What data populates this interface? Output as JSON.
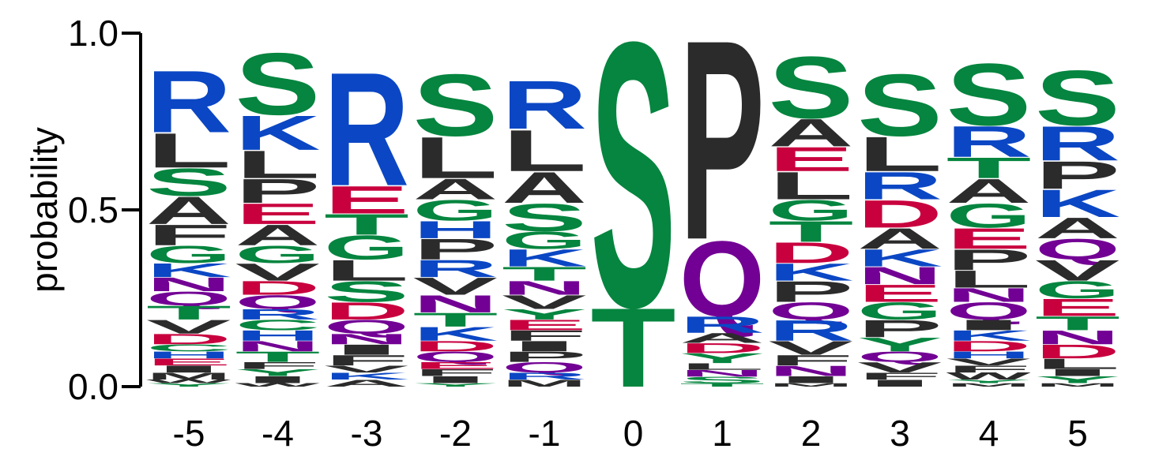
{
  "chart_data": {
    "type": "sequence-logo",
    "ylabel": "probability",
    "ylim": [
      0,
      1
    ],
    "yticks": [
      "0.0",
      "0.5",
      "1.0"
    ],
    "colors": {
      "R": "#0b47c4",
      "K": "#0b47c4",
      "H": "#0b47c4",
      "S": "#05853f",
      "G": "#05853f",
      "T": "#05853f",
      "Y": "#05853f",
      "C": "#05853f",
      "L": "#2b2b2b",
      "A": "#2b2b2b",
      "P": "#2b2b2b",
      "V": "#2b2b2b",
      "I": "#2b2b2b",
      "F": "#2b2b2b",
      "M": "#2b2b2b",
      "W": "#2b2b2b",
      "E": "#c8003e",
      "D": "#c8003e",
      "N": "#720094",
      "Q": "#720094"
    },
    "positions": [
      {
        "label": "-5",
        "stack": [
          [
            "R",
            0.18
          ],
          [
            "L",
            0.1
          ],
          [
            "S",
            0.08
          ],
          [
            "A",
            0.08
          ],
          [
            "F",
            0.06
          ],
          [
            "G",
            0.05
          ],
          [
            "K",
            0.04
          ],
          [
            "N",
            0.04
          ],
          [
            "Q",
            0.04
          ],
          [
            "T",
            0.04
          ],
          [
            "V",
            0.04
          ],
          [
            "D",
            0.03
          ],
          [
            "C",
            0.02
          ],
          [
            "H",
            0.02
          ],
          [
            "E",
            0.02
          ],
          [
            "I",
            0.02
          ],
          [
            "M",
            0.02
          ],
          [
            "W",
            0.01
          ],
          [
            "Y",
            0.01
          ]
        ]
      },
      {
        "label": "-4",
        "stack": [
          [
            "S",
            0.18
          ],
          [
            "K",
            0.1
          ],
          [
            "L",
            0.08
          ],
          [
            "P",
            0.07
          ],
          [
            "E",
            0.06
          ],
          [
            "A",
            0.06
          ],
          [
            "G",
            0.05
          ],
          [
            "V",
            0.05
          ],
          [
            "D",
            0.04
          ],
          [
            "Q",
            0.04
          ],
          [
            "R",
            0.03
          ],
          [
            "C",
            0.03
          ],
          [
            "H",
            0.03
          ],
          [
            "N",
            0.03
          ],
          [
            "T",
            0.03
          ],
          [
            "F",
            0.02
          ],
          [
            "Y",
            0.02
          ],
          [
            "I",
            0.02
          ],
          [
            "W",
            0.01
          ]
        ]
      },
      {
        "label": "-3",
        "stack": [
          [
            "R",
            0.33
          ],
          [
            "E",
            0.08
          ],
          [
            "T",
            0.06
          ],
          [
            "G",
            0.07
          ],
          [
            "L",
            0.06
          ],
          [
            "S",
            0.06
          ],
          [
            "D",
            0.05
          ],
          [
            "Q",
            0.04
          ],
          [
            "N",
            0.03
          ],
          [
            "I",
            0.03
          ],
          [
            "F",
            0.03
          ],
          [
            "V",
            0.02
          ],
          [
            "K",
            0.02
          ],
          [
            "A",
            0.02
          ]
        ]
      },
      {
        "label": "-2",
        "stack": [
          [
            "S",
            0.18
          ],
          [
            "L",
            0.12
          ],
          [
            "A",
            0.06
          ],
          [
            "G",
            0.06
          ],
          [
            "H",
            0.05
          ],
          [
            "P",
            0.06
          ],
          [
            "R",
            0.05
          ],
          [
            "V",
            0.05
          ],
          [
            "N",
            0.05
          ],
          [
            "T",
            0.04
          ],
          [
            "K",
            0.04
          ],
          [
            "D",
            0.03
          ],
          [
            "Q",
            0.03
          ],
          [
            "E",
            0.02
          ],
          [
            "F",
            0.02
          ],
          [
            "I",
            0.02
          ],
          [
            "Y",
            0.01
          ]
        ]
      },
      {
        "label": "-1",
        "stack": [
          [
            "R",
            0.14
          ],
          [
            "L",
            0.12
          ],
          [
            "A",
            0.09
          ],
          [
            "S",
            0.08
          ],
          [
            "G",
            0.05
          ],
          [
            "K",
            0.05
          ],
          [
            "T",
            0.04
          ],
          [
            "N",
            0.04
          ],
          [
            "V",
            0.04
          ],
          [
            "Y",
            0.03
          ],
          [
            "E",
            0.03
          ],
          [
            "F",
            0.03
          ],
          [
            "I",
            0.03
          ],
          [
            "P",
            0.03
          ],
          [
            "Q",
            0.03
          ],
          [
            "R",
            0.02
          ],
          [
            "M",
            0.02
          ]
        ]
      },
      {
        "label": "0",
        "stack": [
          [
            "S",
            0.77
          ],
          [
            "T",
            0.23
          ]
        ]
      },
      {
        "label": "1",
        "stack": [
          [
            "P",
            0.61
          ],
          [
            "Q",
            0.23
          ],
          [
            "R",
            0.05
          ],
          [
            "A",
            0.03
          ],
          [
            "D",
            0.03
          ],
          [
            "Y",
            0.03
          ],
          [
            "L",
            0.02
          ],
          [
            "N",
            0.02
          ],
          [
            "S",
            0.02
          ],
          [
            "T",
            0.01
          ]
        ]
      },
      {
        "label": "2",
        "stack": [
          [
            "S",
            0.18
          ],
          [
            "A",
            0.08
          ],
          [
            "E",
            0.07
          ],
          [
            "L",
            0.08
          ],
          [
            "G",
            0.06
          ],
          [
            "T",
            0.06
          ],
          [
            "D",
            0.06
          ],
          [
            "K",
            0.05
          ],
          [
            "P",
            0.06
          ],
          [
            "Q",
            0.05
          ],
          [
            "R",
            0.06
          ],
          [
            "V",
            0.04
          ],
          [
            "F",
            0.03
          ],
          [
            "N",
            0.03
          ],
          [
            "I",
            0.02
          ],
          [
            "M",
            0.01
          ]
        ]
      },
      {
        "label": "3",
        "stack": [
          [
            "S",
            0.18
          ],
          [
            "L",
            0.1
          ],
          [
            "R",
            0.08
          ],
          [
            "D",
            0.08
          ],
          [
            "A",
            0.06
          ],
          [
            "K",
            0.05
          ],
          [
            "N",
            0.05
          ],
          [
            "E",
            0.05
          ],
          [
            "G",
            0.05
          ],
          [
            "P",
            0.05
          ],
          [
            "Y",
            0.04
          ],
          [
            "Q",
            0.03
          ],
          [
            "V",
            0.03
          ],
          [
            "F",
            0.02
          ],
          [
            "I",
            0.02
          ]
        ]
      },
      {
        "label": "4",
        "stack": [
          [
            "S",
            0.18
          ],
          [
            "R",
            0.09
          ],
          [
            "T",
            0.06
          ],
          [
            "A",
            0.07
          ],
          [
            "G",
            0.07
          ],
          [
            "E",
            0.06
          ],
          [
            "P",
            0.06
          ],
          [
            "L",
            0.05
          ],
          [
            "N",
            0.04
          ],
          [
            "Q",
            0.05
          ],
          [
            "I",
            0.03
          ],
          [
            "K",
            0.03
          ],
          [
            "D",
            0.03
          ],
          [
            "H",
            0.02
          ],
          [
            "V",
            0.02
          ],
          [
            "F",
            0.02
          ],
          [
            "W",
            0.02
          ],
          [
            "Y",
            0.01
          ],
          [
            "M",
            0.01
          ]
        ]
      },
      {
        "label": "5",
        "stack": [
          [
            "S",
            0.16
          ],
          [
            "R",
            0.1
          ],
          [
            "P",
            0.08
          ],
          [
            "K",
            0.08
          ],
          [
            "A",
            0.06
          ],
          [
            "Q",
            0.06
          ],
          [
            "V",
            0.06
          ],
          [
            "G",
            0.05
          ],
          [
            "E",
            0.05
          ],
          [
            "T",
            0.04
          ],
          [
            "N",
            0.04
          ],
          [
            "D",
            0.04
          ],
          [
            "L",
            0.03
          ],
          [
            "I",
            0.02
          ],
          [
            "Y",
            0.02
          ],
          [
            "M",
            0.01
          ]
        ]
      }
    ]
  }
}
